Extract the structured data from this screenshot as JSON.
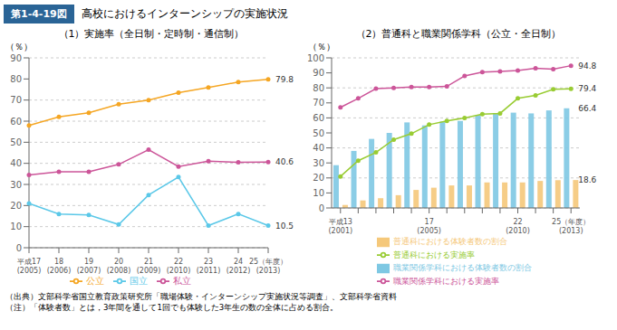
{
  "title": "第1-4-19図",
  "subtitle": "高校におけるインターンシップの実施状況",
  "color": "#2a6496",
  "annotations": [
    "（出典）文部科学省国立教育政策研究所「職場体験・インターンシップ実施状況等調査」、文部科学省資料",
    "（注）「体験者数」とは，3年間を通して1回でも体験した3年生の数の全体に占める割合。"
  ],
  "chart_data": [
    {
      "type": "line",
      "title": "（1）実施率（全日制・定時制・通信制）",
      "ylabel": "（％）",
      "categories": [
        "平成17\n(2005)",
        "18\n(2006)",
        "19\n(2007)",
        "20\n(2008)",
        "21\n(2009)",
        "22\n(2010)",
        "23\n(2011)",
        "24\n(2012)",
        "25（年度）\n(2013)"
      ],
      "series": [
        {
          "name": "国立",
          "color": "#5bc8e8",
          "values": [
            21.0,
            16.0,
            15.5,
            11.0,
            25.0,
            33.5,
            10.5,
            16.0,
            10.5
          ]
        },
        {
          "name": "公立",
          "color": "#f5a623",
          "values": [
            58.0,
            62.0,
            64.0,
            68.0,
            70.0,
            73.5,
            76.0,
            78.5,
            79.8
          ]
        },
        {
          "name": "私立",
          "color": "#cc5599",
          "values": [
            34.5,
            36.0,
            36.0,
            39.5,
            46.5,
            38.5,
            41.0,
            40.5,
            40.6
          ]
        }
      ],
      "marker": "circle",
      "ylim": [
        0,
        90
      ],
      "yticks": [
        0,
        10,
        20,
        30,
        40,
        50,
        60,
        70,
        80,
        90
      ],
      "grid": true,
      "legend": "bottom",
      "annotations": [
        {
          "text": "79.8",
          "x": "25（年度）\n(2013)",
          "y": 79.8
        },
        {
          "text": "40.6",
          "x": "25（年度）\n(2013)",
          "y": 40.6
        },
        {
          "text": "10.5",
          "x": "25（年度）\n(2013)",
          "y": 10.5
        }
      ]
    },
    {
      "type": "bar",
      "title": "（2）普通科と職業関係学科（公立・全日制）",
      "ylabel": "（％）",
      "categories": [
        "平成13\n(2001)",
        null,
        null,
        null,
        null,
        "17\n(2005)",
        null,
        null,
        null,
        null,
        "22\n(2010)",
        null,
        null,
        "25（年度）\n(2013)"
      ],
      "series": [
        {
          "name": "職業関係学科における体験者数の割合",
          "type": "bar",
          "color": "#7ec8e3",
          "values": [
            28.5,
            38.0,
            46.0,
            50.0,
            57.0,
            55.0,
            57.5,
            58.0,
            62.0,
            63.0,
            63.5,
            63.0,
            65.0,
            66.4
          ]
        },
        {
          "name": "普通科における体験者数の割合",
          "type": "bar",
          "color": "#f5c87a",
          "values": [
            2.0,
            5.0,
            6.5,
            8.5,
            12.0,
            13.5,
            15.0,
            15.0,
            17.0,
            17.0,
            17.0,
            18.0,
            18.5,
            18.6
          ]
        },
        {
          "name": "職業関係学科における実施率",
          "type": "line",
          "marker": "circle",
          "color": "#cc5599",
          "values": [
            67.0,
            73.0,
            79.5,
            80.0,
            80.5,
            80.5,
            81.0,
            88.0,
            90.5,
            91.0,
            91.5,
            93.0,
            92.5,
            94.8
          ]
        },
        {
          "name": "普通科における実施率",
          "type": "line",
          "marker": "circle",
          "color": "#99cc33",
          "values": [
            21.0,
            31.5,
            37.0,
            45.5,
            49.5,
            55.5,
            58.0,
            60.0,
            62.5,
            63.0,
            73.0,
            75.0,
            79.0,
            79.4
          ]
        }
      ],
      "ylim": [
        0,
        100
      ],
      "yticks": [
        0,
        10,
        20,
        30,
        40,
        50,
        60,
        70,
        80,
        90,
        100
      ],
      "grid": true,
      "legend": "bottom",
      "annotations": [
        {
          "text": "94.8",
          "x": "25（年度）\n(2013)",
          "y": 94.8
        },
        {
          "text": "79.4",
          "x": "25（年度）\n(2013)",
          "y": 79.4
        },
        {
          "text": "66.4",
          "x": "25（年度）\n(2013)",
          "y": 66.4
        },
        {
          "text": "18.6",
          "x": "25（年度）\n(2013)",
          "y": 18.6
        }
      ]
    }
  ]
}
